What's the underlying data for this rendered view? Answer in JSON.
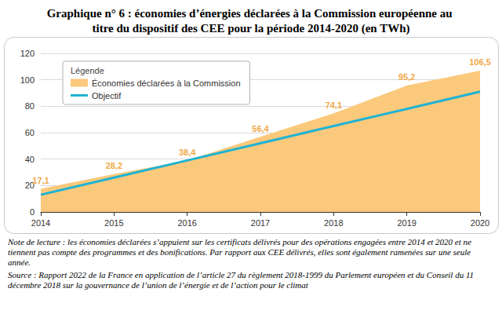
{
  "chart_data": {
    "type": "area",
    "title": "Graphique n° 6 : économies d’énergies déclarées à la Commission européenne au titre du dispositif des CEE pour la période 2014-2020 (en TWh)",
    "legend_title": "Légende",
    "note": "Note de lecture : les économies déclarées s’appuient sur les certificats délivrés pour des opérations engagées entre 2014 et 2020 et ne tiennent pas compte des programmes et des bonifications. Par rapport aux CEE délivrés, elles sont également ramenées sur une seule année.",
    "source": "Source : Rapport 2022 de la France en application de l’article 27 du règlement 2018-1999 du Parlement européen et du Conseil du 11 décembre 2018 sur la gouvernance de l’union de l’énergie et de l’action pour le climat",
    "categories": [
      "2014",
      "2015",
      "2016",
      "2017",
      "2018",
      "2019",
      "2020"
    ],
    "series": [
      {
        "name": "Économies déclarées à la Commission",
        "type": "area",
        "color": "#fbc97c",
        "values": [
          17.1,
          28.2,
          38.4,
          56.4,
          74.1,
          95.2,
          106.5
        ],
        "value_labels": [
          "17,1",
          "28,2",
          "38,4",
          "56,4",
          "74,1",
          "95,2",
          "106,5"
        ],
        "data_labels": true
      },
      {
        "name": "Objectif",
        "type": "line",
        "color": "#1fb3d2",
        "values": [
          13,
          26,
          39,
          52,
          65,
          78,
          91
        ]
      }
    ],
    "ylim": [
      0,
      120
    ],
    "yticks": [
      0,
      20,
      40,
      60,
      80,
      100,
      120
    ],
    "grid": true,
    "legend": "top-left"
  }
}
